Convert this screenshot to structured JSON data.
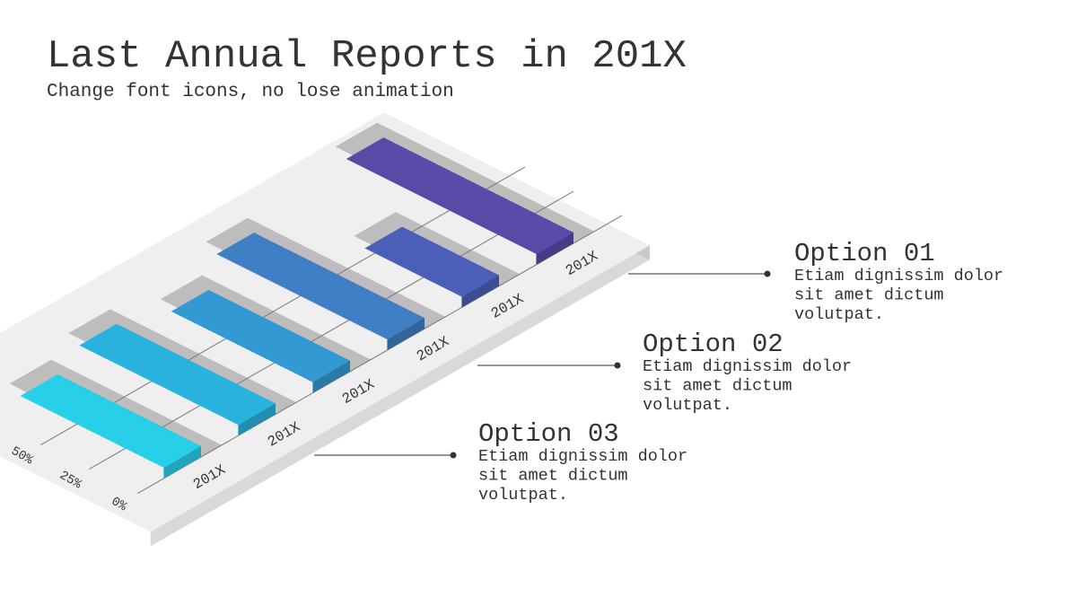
{
  "chart_data": {
    "type": "isometric-bar",
    "title": "Last Annual Reports in 201X",
    "subtitle": "Change font icons, no lose animation",
    "categories": [
      "201X",
      "201X",
      "201X",
      "201X",
      "201X",
      "201X"
    ],
    "values": [
      74,
      82,
      73,
      88,
      50,
      98
    ],
    "colors": [
      "#27d0e8",
      "#2ab2de",
      "#3399d2",
      "#3f7fc4",
      "#4a60b8",
      "#5a4aa8"
    ],
    "ylim": [
      0,
      100
    ],
    "yticks": [
      {
        "value": 0,
        "label": "0%"
      },
      {
        "value": 25,
        "label": "25%"
      },
      {
        "value": 50,
        "label": "50%"
      }
    ],
    "grid": true
  },
  "callouts": [
    {
      "title": "Option 01",
      "text": [
        "Etiam dignissim dolor",
        "sit amet dictum",
        "volutpat."
      ]
    },
    {
      "title": "Option 02",
      "text": [
        "Etiam dignissim dolor",
        "sit amet dictum",
        "volutpat."
      ]
    },
    {
      "title": "Option 03",
      "text": [
        "Etiam dignissim dolor",
        "sit amet dictum",
        "volutpat."
      ]
    }
  ]
}
